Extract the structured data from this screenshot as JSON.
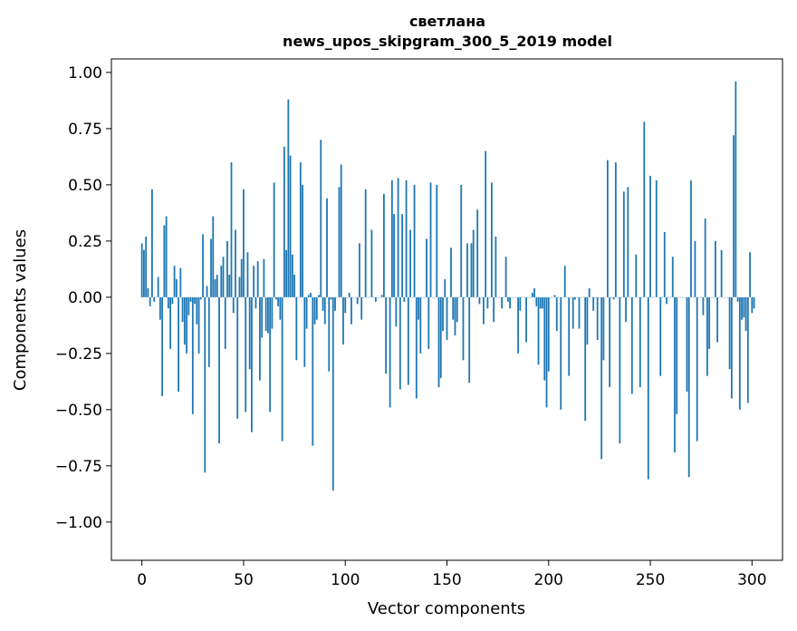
{
  "chart_data": {
    "type": "bar",
    "title": "светлана",
    "subtitle": "news_upos_skipgram_300_5_2019 model",
    "xlabel": "Vector components",
    "ylabel": "Components values",
    "xlim": [
      -15,
      315
    ],
    "ylim": [
      -1.17,
      1.06
    ],
    "xticks": [
      0,
      50,
      100,
      150,
      200,
      250,
      300
    ],
    "xtick_labels": [
      "0",
      "50",
      "100",
      "150",
      "200",
      "250",
      "300"
    ],
    "yticks": [
      1.0,
      0.75,
      0.5,
      0.25,
      0.0,
      -0.25,
      -0.5,
      -0.75,
      -1.0
    ],
    "ytick_labels": [
      "1.00",
      "0.75",
      "0.50",
      "0.25",
      "0.00",
      "−0.25",
      "−0.50",
      "−0.75",
      "−1.00"
    ],
    "bar_color": "#1f77b4",
    "grid": false,
    "values": [
      0.24,
      0.21,
      0.27,
      0.04,
      -0.04,
      0.48,
      -0.02,
      0.0,
      0.09,
      -0.1,
      -0.44,
      0.32,
      0.36,
      -0.05,
      -0.23,
      -0.03,
      0.14,
      0.08,
      -0.42,
      0.13,
      -0.11,
      -0.21,
      -0.25,
      -0.08,
      -0.02,
      -0.52,
      -0.03,
      -0.12,
      -0.25,
      -0.01,
      0.28,
      -0.78,
      0.05,
      -0.31,
      0.26,
      0.36,
      0.08,
      0.1,
      -0.65,
      0.14,
      0.18,
      -0.23,
      0.25,
      0.1,
      0.6,
      -0.07,
      0.3,
      -0.54,
      0.09,
      0.17,
      0.48,
      -0.51,
      0.2,
      -0.32,
      -0.6,
      0.14,
      -0.05,
      0.16,
      -0.37,
      -0.18,
      0.17,
      -0.15,
      -0.16,
      -0.51,
      -0.14,
      0.51,
      -0.01,
      -0.04,
      -0.1,
      -0.64,
      0.67,
      0.21,
      0.88,
      0.63,
      0.19,
      0.1,
      -0.28,
      0.0,
      0.6,
      0.5,
      -0.31,
      -0.14,
      0.01,
      0.02,
      -0.66,
      -0.12,
      -0.1,
      0.01,
      0.7,
      -0.06,
      -0.12,
      0.44,
      -0.33,
      -0.01,
      -0.86,
      -0.06,
      0.0,
      0.49,
      0.59,
      -0.21,
      -0.07,
      0.0,
      0.02,
      -0.12,
      0.0,
      0.0,
      -0.03,
      0.24,
      -0.1,
      0.0,
      0.48,
      0.0,
      0.0,
      0.3,
      0.0,
      -0.02,
      0.0,
      0.0,
      0.01,
      0.46,
      -0.34,
      0.0,
      -0.49,
      0.52,
      0.37,
      -0.13,
      0.53,
      -0.41,
      0.37,
      -0.02,
      0.52,
      -0.39,
      0.3,
      0.0,
      0.5,
      -0.45,
      -0.1,
      -0.25,
      0.0,
      0.0,
      0.26,
      -0.23,
      0.51,
      0.0,
      0.0,
      0.5,
      -0.4,
      -0.36,
      -0.15,
      0.08,
      -0.19,
      0.0,
      0.22,
      -0.1,
      -0.17,
      -0.11,
      0.0,
      0.5,
      -0.28,
      0.0,
      0.24,
      -0.38,
      0.24,
      0.3,
      0.0,
      0.39,
      -0.03,
      0.0,
      -0.12,
      0.65,
      -0.05,
      0.0,
      0.51,
      -0.11,
      0.27,
      0.0,
      0.0,
      -0.05,
      0.0,
      0.18,
      -0.02,
      -0.05,
      0.0,
      0.0,
      0.0,
      -0.25,
      -0.06,
      0.0,
      0.0,
      -0.2,
      0.0,
      0.0,
      0.02,
      0.04,
      -0.04,
      -0.3,
      -0.05,
      -0.05,
      -0.37,
      -0.49,
      -0.33,
      0.0,
      0.0,
      0.01,
      -0.15,
      0.0,
      -0.5,
      0.0,
      0.14,
      0.0,
      -0.35,
      0.0,
      -0.14,
      -0.01,
      0.0,
      -0.14,
      0.0,
      0.0,
      -0.55,
      -0.21,
      0.04,
      0.0,
      -0.06,
      0.0,
      -0.19,
      0.0,
      -0.72,
      -0.28,
      0.0,
      0.61,
      -0.4,
      0.0,
      -0.01,
      0.6,
      0.0,
      -0.65,
      0.0,
      0.47,
      -0.11,
      0.49,
      0.0,
      -0.43,
      0.0,
      0.19,
      0.0,
      -0.4,
      0.0,
      0.78,
      0.0,
      -0.81,
      0.54,
      0.0,
      0.0,
      0.52,
      0.0,
      -0.35,
      0.0,
      0.29,
      -0.03,
      0.0,
      0.0,
      0.18,
      -0.69,
      -0.52,
      0.0,
      0.0,
      0.0,
      0.0,
      -0.42,
      -0.8,
      0.52,
      0.0,
      0.25,
      -0.64,
      0.0,
      0.0,
      -0.08,
      0.35,
      -0.35,
      -0.23,
      0.0,
      0.0,
      0.25,
      -0.2,
      0.0,
      0.21,
      0.0,
      0.0,
      0.0,
      -0.32,
      -0.45,
      0.72,
      0.96,
      -0.02,
      -0.5,
      -0.1,
      -0.09,
      -0.15,
      -0.47,
      0.2,
      -0.07,
      -0.05
    ]
  }
}
